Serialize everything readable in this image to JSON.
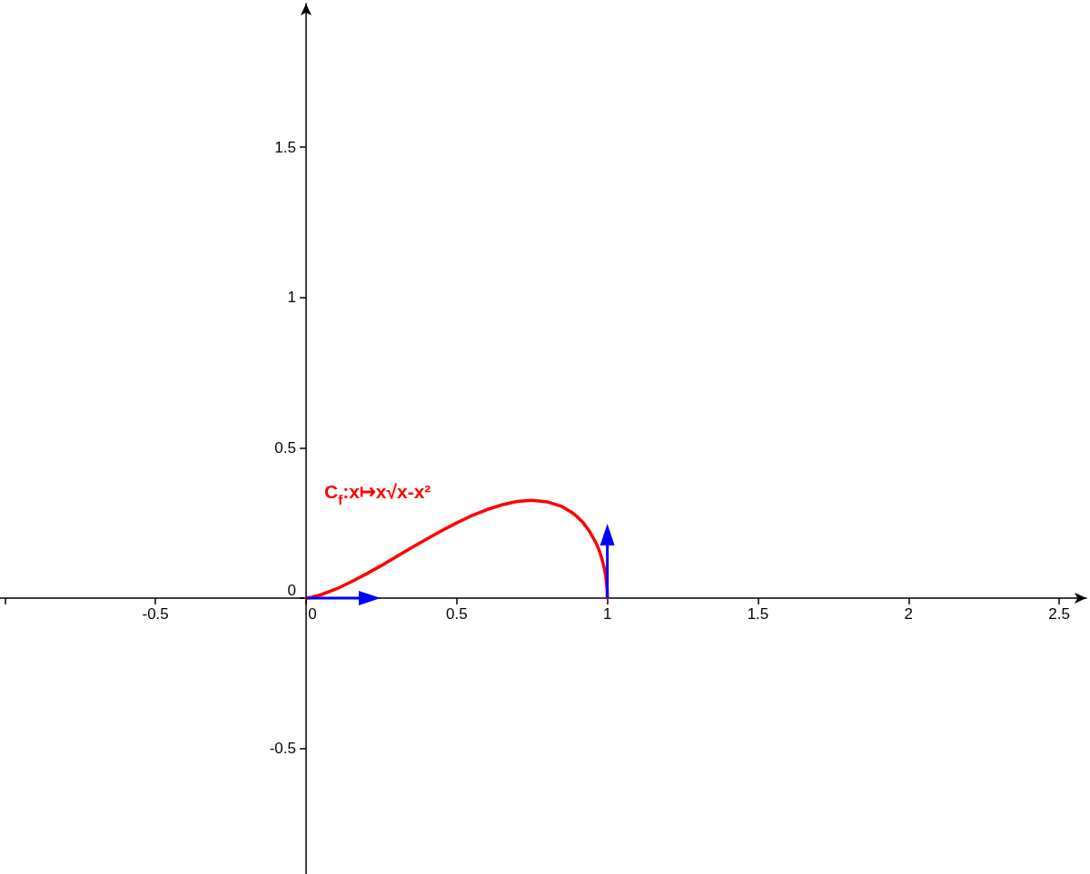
{
  "chart_data": {
    "type": "line",
    "xlim": [
      -1.016,
      2.59
    ],
    "ylim": [
      -0.918,
      1.977
    ],
    "xticks": [
      {
        "value": -1,
        "label": null
      },
      -0.5,
      0,
      0.5,
      1,
      1.5,
      2,
      2.5
    ],
    "yticks": [
      -0.5,
      0,
      0.5,
      1,
      1.5
    ],
    "line_style": "solid",
    "series": [
      {
        "name": "C$_{f}$:x↦x√x-x²",
        "color": "#ff0000",
        "x": [
          0,
          0.02,
          0.05,
          0.1,
          0.15,
          0.2,
          0.25,
          0.3,
          0.35,
          0.4,
          0.45,
          0.5,
          0.55,
          0.6,
          0.65,
          0.7,
          0.75,
          0.8,
          0.85,
          0.88,
          0.9,
          0.92,
          0.94,
          0.96,
          0.97,
          0.98,
          0.99,
          0.995,
          0.999,
          1
        ],
        "values": [
          0,
          0.003,
          0.011,
          0.03,
          0.054,
          0.08,
          0.108,
          0.138,
          0.167,
          0.196,
          0.224,
          0.25,
          0.274,
          0.294,
          0.31,
          0.321,
          0.325,
          0.32,
          0.304,
          0.286,
          0.27,
          0.25,
          0.223,
          0.188,
          0.166,
          0.137,
          0.099,
          0.07,
          0.032,
          0
        ]
      }
    ]
  }
}
